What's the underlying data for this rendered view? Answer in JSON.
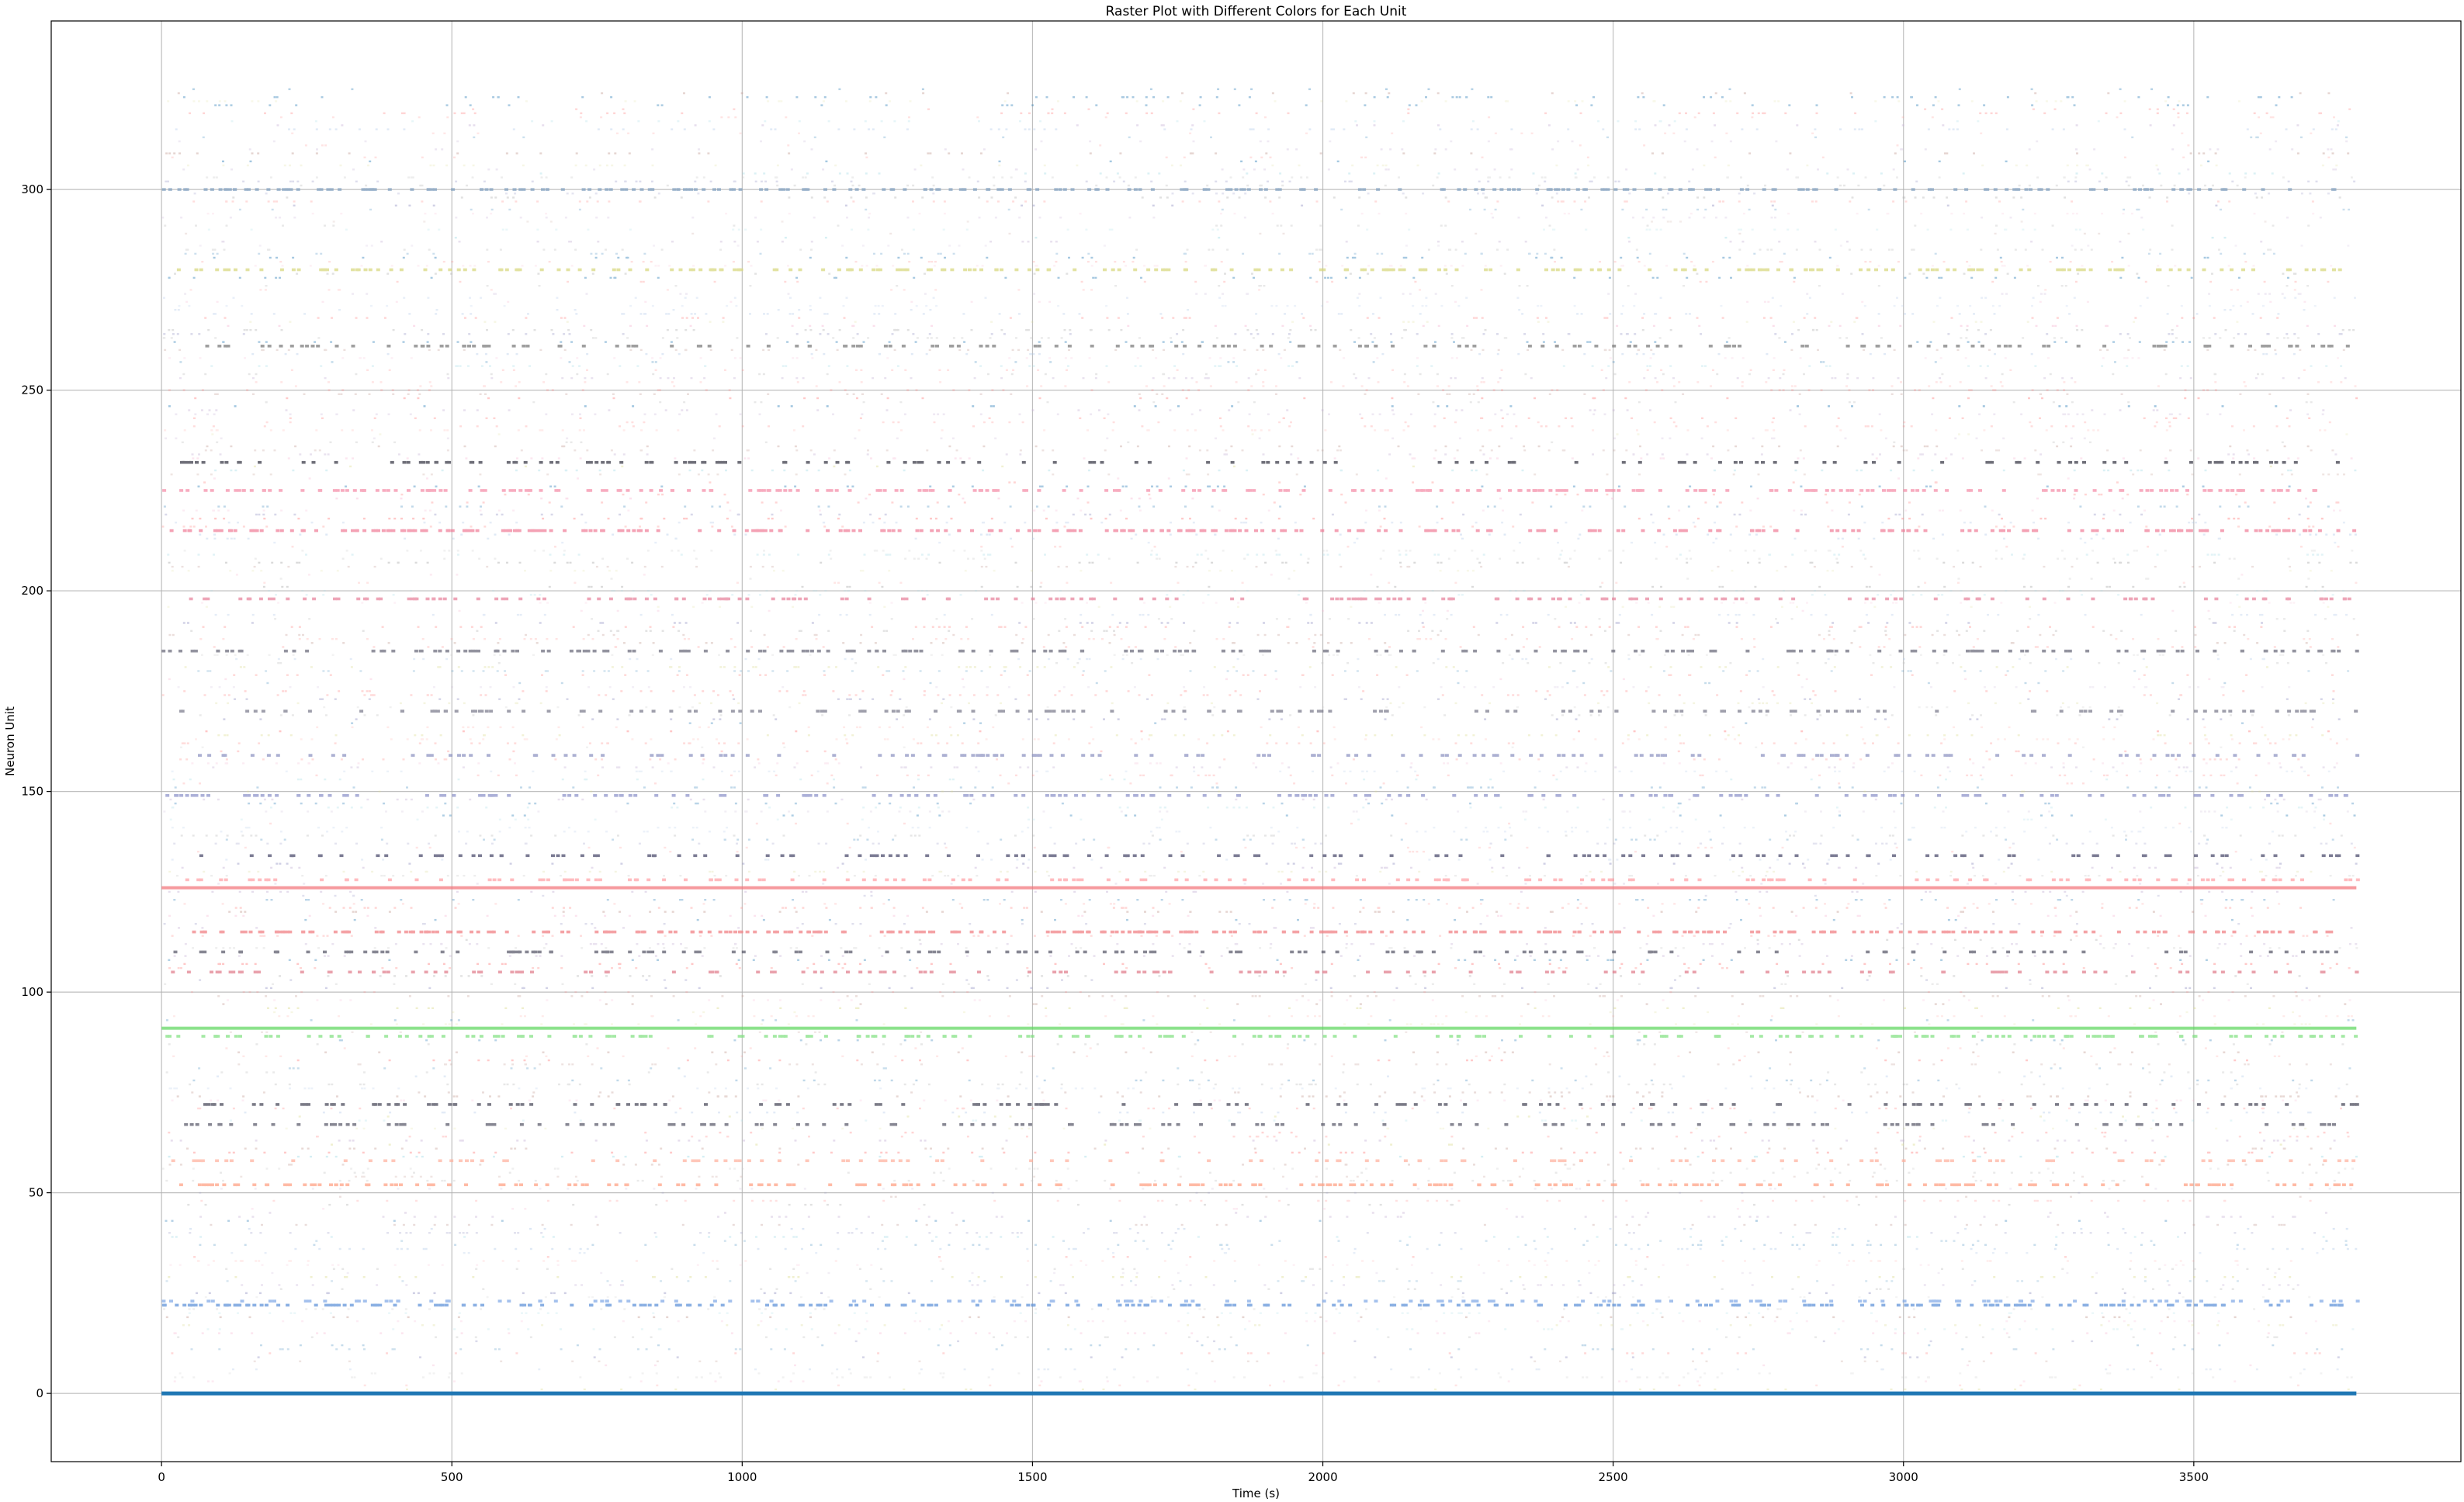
{
  "chart_data": {
    "type": "scatter",
    "title": "Raster Plot with Different Colors for Each Unit",
    "xlabel": "Time (s)",
    "ylabel": "Neuron Unit",
    "xlim": [
      -190,
      3960
    ],
    "ylim": [
      -17,
      342
    ],
    "xticks": [
      0,
      500,
      1000,
      1500,
      2000,
      2500,
      3000,
      3500
    ],
    "yticks": [
      0,
      50,
      100,
      150,
      200,
      250,
      300
    ],
    "grid": true,
    "legend": "none",
    "time_range": [
      0,
      3780
    ],
    "unit_range": [
      0,
      325
    ],
    "base_colors": [
      "#1f77b4",
      "#aec7e8",
      "#ff9896",
      "#9edae5",
      "#c5b0d5",
      "#c7c7c7",
      "#8c8cc0",
      "#dbdb8d",
      "#f7b6d2",
      "#c49c94",
      "#aaaaaa",
      "#ff7f7f"
    ],
    "prominent_units": [
      {
        "unit": 0,
        "color": "#1f77b4",
        "density": 1.0
      },
      {
        "unit": 22,
        "color": "#5b8fd8",
        "density": 0.6
      },
      {
        "unit": 23,
        "color": "#7ea7e6",
        "density": 0.35
      },
      {
        "unit": 52,
        "color": "#ff9e80",
        "density": 0.55
      },
      {
        "unit": 58,
        "color": "#ffb09c",
        "density": 0.3
      },
      {
        "unit": 67,
        "color": "#555566",
        "density": 0.35
      },
      {
        "unit": 72,
        "color": "#444455",
        "density": 0.35
      },
      {
        "unit": 89,
        "color": "#7ee07e",
        "density": 0.5
      },
      {
        "unit": 91,
        "color": "#5bd65b",
        "density": 0.9
      },
      {
        "unit": 105,
        "color": "#e07a8a",
        "density": 0.35
      },
      {
        "unit": 110,
        "color": "#555566",
        "density": 0.35
      },
      {
        "unit": 115,
        "color": "#f07c80",
        "density": 0.8
      },
      {
        "unit": 126,
        "color": "#f26f75",
        "density": 0.95
      },
      {
        "unit": 128,
        "color": "#ff9fa4",
        "density": 0.4
      },
      {
        "unit": 134,
        "color": "#444466",
        "density": 0.35
      },
      {
        "unit": 149,
        "color": "#8a90c8",
        "density": 0.45
      },
      {
        "unit": 159,
        "color": "#8a8fbf",
        "density": 0.35
      },
      {
        "unit": 170,
        "color": "#777788",
        "density": 0.35
      },
      {
        "unit": 185,
        "color": "#666677",
        "density": 0.5
      },
      {
        "unit": 198,
        "color": "#e7809a",
        "density": 0.45
      },
      {
        "unit": 215,
        "color": "#f07a95",
        "density": 0.7
      },
      {
        "unit": 225,
        "color": "#f48aa5",
        "density": 0.6
      },
      {
        "unit": 232,
        "color": "#333340",
        "density": 0.35
      },
      {
        "unit": 261,
        "color": "#777777",
        "density": 0.4
      },
      {
        "unit": 280,
        "color": "#d6d67a",
        "density": 0.55
      },
      {
        "unit": 300,
        "color": "#7f9fbf",
        "density": 0.6
      }
    ]
  }
}
